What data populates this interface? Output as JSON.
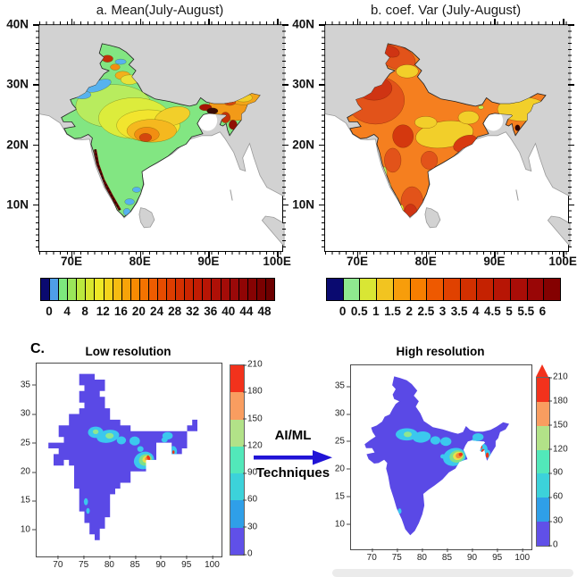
{
  "panel_a": {
    "title": "a. Mean(July-August)",
    "lat_ticks": [
      "40N",
      "30N",
      "20N",
      "10N"
    ],
    "lon_ticks": [
      "70E",
      "80E",
      "90E",
      "100E"
    ],
    "colorbar": {
      "labels": [
        "0",
        "4",
        "8",
        "12",
        "16",
        "20",
        "24",
        "28",
        "32",
        "36",
        "40",
        "44",
        "48"
      ],
      "colors": [
        "#0a0a70",
        "#4f9ee8",
        "#7de87d",
        "#9ae65a",
        "#bae83e",
        "#d8e62e",
        "#eee826",
        "#f4d41c",
        "#f6bc12",
        "#f7a309",
        "#f78b02",
        "#f47300",
        "#ee5c00",
        "#e64c00",
        "#dd3d00",
        "#d43000",
        "#cb2500",
        "#c21c03",
        "#b81505",
        "#ae1007",
        "#a40c08",
        "#9a0909",
        "#900505",
        "#860303",
        "#7a0101",
        "#6d0000"
      ]
    }
  },
  "panel_b": {
    "title": "b. coef. Var (July-August)",
    "lat_ticks": [
      "40N",
      "30N",
      "20N",
      "10N"
    ],
    "lon_ticks": [
      "70E",
      "80E",
      "90E",
      "100E"
    ],
    "colorbar": {
      "labels": [
        "0",
        "0.5",
        "1",
        "1.5",
        "2",
        "2.5",
        "3",
        "3.5",
        "4",
        "4.5",
        "5",
        "5.5",
        "6"
      ],
      "colors": [
        "#0a0a70",
        "#8fe88f",
        "#d9e634",
        "#f2c420",
        "#f79d0b",
        "#f77e00",
        "#ee5900",
        "#e04100",
        "#d23000",
        "#c52201",
        "#b71505",
        "#a90d07",
        "#990606",
        "#840101"
      ]
    }
  },
  "panel_c": {
    "label": "C.",
    "arrow": {
      "line1": "AI/ML",
      "line2": "Techniques",
      "color": "#2013d6"
    },
    "low": {
      "title": "Low resolution",
      "x_ticks": [
        "70",
        "75",
        "80",
        "85",
        "90",
        "95",
        "100"
      ],
      "y_ticks": [
        "35",
        "30",
        "25",
        "20",
        "15",
        "10"
      ],
      "cbar_ticks": [
        "210",
        "180",
        "150",
        "120",
        "90",
        "60",
        "30",
        "0"
      ],
      "cbar_colors": [
        "#f2321c",
        "#f99d60",
        "#b2e288",
        "#52e8ba",
        "#3cd2da",
        "#2f9fe8",
        "#6050e8"
      ]
    },
    "high": {
      "title": "High resolution",
      "x_ticks": [
        "70",
        "75",
        "80",
        "85",
        "90",
        "95",
        "100"
      ],
      "y_ticks": [
        "35",
        "30",
        "25",
        "20",
        "15",
        "10"
      ],
      "cbar_ticks": [
        "210",
        "180",
        "150",
        "120",
        "90",
        "60",
        "30",
        "0"
      ],
      "cbar_colors": [
        "#f2321c",
        "#f99d60",
        "#b2e288",
        "#52e8ba",
        "#3cd2da",
        "#2f9fe8",
        "#6050e8"
      ]
    }
  },
  "chart_data": [
    {
      "type": "heatmap",
      "subtype": "filled-contour-map",
      "title": "a. Mean(July-August)",
      "region": "India",
      "x_tick_labels": [
        "70E",
        "80E",
        "90E",
        "100E"
      ],
      "y_tick_labels": [
        "40N",
        "30N",
        "20N",
        "10N"
      ],
      "colorbar": {
        "min": 0,
        "max": 48,
        "tick_values": [
          0,
          4,
          8,
          12,
          16,
          20,
          24,
          28,
          32,
          36,
          40,
          44,
          48
        ]
      },
      "legend_position": "bottom",
      "description": "Mean July-August rainfall over India: low values (blue/green 0-12) over northwest India, Kashmir and the far south interior; moderate (yellow 12-24) over central India; high (orange-red 24-40) over east-central India; very high (dark red >40) along the Western Ghats coastal strip and over northeast India; non-India land gray, ocean white"
    },
    {
      "type": "heatmap",
      "subtype": "filled-contour-map",
      "title": "b. coef. Var (July-August)",
      "region": "India",
      "x_tick_labels": [
        "70E",
        "80E",
        "90E",
        "100E"
      ],
      "y_tick_labels": [
        "40N",
        "30N",
        "20N",
        "10N"
      ],
      "colorbar": {
        "min": 0,
        "max": 6,
        "tick_values": [
          0,
          0.5,
          1,
          1.5,
          2,
          2.5,
          3,
          3.5,
          4,
          4.5,
          5,
          5.5,
          6
        ]
      },
      "legend_position": "bottom",
      "description": "Coefficient of variation of July-August rainfall: mostly 2-3 (orange) over India, 3.5-5 (dark red) over northwest India and Kashmir, 1-2 (yellow) over the east-central belt and northeast states, small light-green slivers (0.5-1) along the southwest coast"
    },
    {
      "type": "heatmap",
      "subtype": "gridded-map",
      "title": "Low resolution",
      "region": "India",
      "x_tick_values": [
        70,
        75,
        80,
        85,
        90,
        95,
        100
      ],
      "y_tick_values": [
        35,
        30,
        25,
        20,
        15,
        10
      ],
      "colorbar": {
        "min": 0,
        "max": 210,
        "tick_values": [
          0,
          30,
          60,
          90,
          120,
          150,
          180,
          210
        ]
      },
      "description": "Coarse blocky rainfall field: mostly 0-30 (purple) with 30-90 (cyan) patches over north-central India near 77-85E 25-27N, a 150-210 (orange/red) hotspot near 87E 22N, and cyan spots with a small red dot over the northeast near 91-92E"
    },
    {
      "type": "heatmap",
      "subtype": "gridded-map",
      "title": "High resolution",
      "region": "India",
      "x_tick_values": [
        70,
        75,
        80,
        85,
        90,
        95,
        100
      ],
      "y_tick_values": [
        35,
        30,
        25,
        20,
        15,
        10
      ],
      "colorbar": {
        "min": 0,
        "max": 210,
        "tick_values": [
          0,
          30,
          60,
          90,
          120,
          150,
          180,
          210
        ],
        "over_arrow": true
      },
      "description": "Downscaled smooth rainfall field: same pattern as low resolution but smoother, stronger 180-210 (red) maxima near 87E 22.5N and over the northeast near 92-93E 22-24N; colorbar has an overflow arrow at the top"
    }
  ]
}
